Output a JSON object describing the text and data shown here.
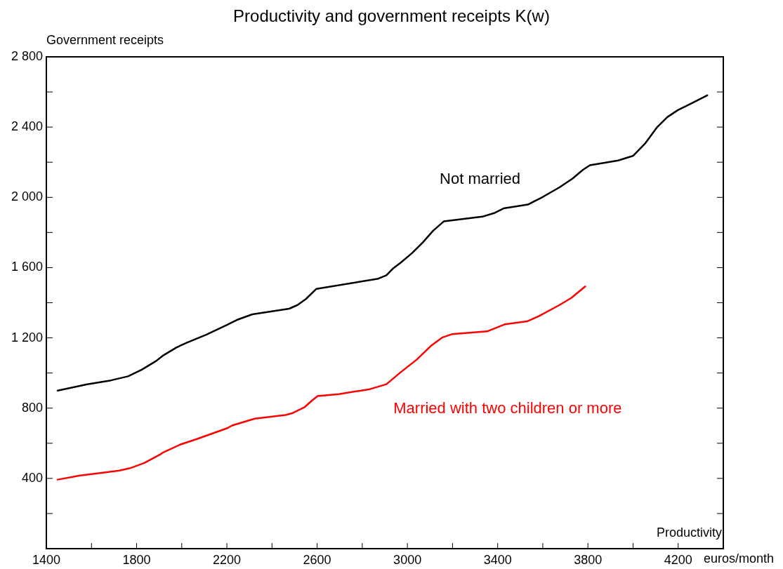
{
  "chart_data": {
    "type": "line",
    "title": "Productivity and government receipts K(w)",
    "xlabel": "Productivity",
    "ylabel": "Government receipts",
    "annotations": [
      "euros/month"
    ],
    "xlim": [
      1400,
      4400
    ],
    "ylim": [
      0,
      2800
    ],
    "xticks": [
      1400,
      {
        "value": 1600,
        "label": null
      },
      1800,
      {
        "value": 2000,
        "label": null
      },
      2200,
      {
        "value": 2400,
        "label": null
      },
      2600,
      {
        "value": 2800,
        "label": null
      },
      3000,
      {
        "value": 3200,
        "label": null
      },
      3400,
      {
        "value": 3600,
        "label": null
      },
      3800,
      {
        "value": 4000,
        "label": null
      },
      4200,
      {
        "value": 4400,
        "label": null
      }
    ],
    "yticks": [
      {
        "value": 200,
        "label": null
      },
      400,
      {
        "value": 600,
        "label": null
      },
      800,
      {
        "value": 1000,
        "label": null
      },
      {
        "value": 1200,
        "label": "1 200"
      },
      {
        "value": 1400,
        "label": null
      },
      {
        "value": 1600,
        "label": "1 600"
      },
      {
        "value": 1800,
        "label": null
      },
      {
        "value": 2000,
        "label": "2 000"
      },
      {
        "value": 2200,
        "label": null
      },
      {
        "value": 2400,
        "label": "2 400"
      },
      {
        "value": 2600,
        "label": null
      },
      {
        "value": 2800,
        "label": "2 800"
      }
    ],
    "grid": false,
    "legend": false,
    "marker": "none",
    "line_style": "solid",
    "series": [
      {
        "name": "Not married",
        "color": "#000000",
        "x": [
          1450,
          1581,
          1686,
          1762,
          1823,
          1887,
          1918,
          1976,
          2023,
          2108,
          2202,
          2244,
          2313,
          2476,
          2513,
          2550,
          2597,
          2871,
          2907,
          2938,
          2969,
          3021,
          3068,
          3114,
          3161,
          3332,
          3384,
          3426,
          3534,
          3601,
          3674,
          3731,
          3778,
          3809,
          3934,
          4001,
          4053,
          4105,
          4152,
          4199,
          4251,
          4329
        ],
        "values": [
          900,
          936,
          958,
          981,
          1019,
          1069,
          1100,
          1145,
          1173,
          1218,
          1275,
          1302,
          1334,
          1366,
          1387,
          1421,
          1479,
          1537,
          1556,
          1597,
          1627,
          1683,
          1743,
          1810,
          1863,
          1890,
          1910,
          1937,
          1959,
          2003,
          2057,
          2106,
          2157,
          2183,
          2210,
          2237,
          2306,
          2397,
          2457,
          2497,
          2530,
          2581
        ]
      },
      {
        "name": "Married with two children or more",
        "color": "#ff0000",
        "x": [
          1450,
          1550,
          1644,
          1723,
          1771,
          1834,
          1908,
          1918,
          1992,
          2065,
          2128,
          2202,
          2223,
          2323,
          2460,
          2492,
          2544,
          2576,
          2602,
          2697,
          2834,
          2907,
          2969,
          3042,
          3104,
          3156,
          3197,
          3353,
          3431,
          3530,
          3581,
          3674,
          3726,
          3788
        ],
        "values": [
          393,
          416,
          431,
          444,
          458,
          488,
          539,
          548,
          592,
          623,
          652,
          686,
          701,
          740,
          761,
          772,
          805,
          842,
          869,
          880,
          908,
          936,
          1003,
          1077,
          1154,
          1203,
          1221,
          1237,
          1277,
          1294,
          1323,
          1387,
          1427,
          1493
        ]
      }
    ]
  }
}
